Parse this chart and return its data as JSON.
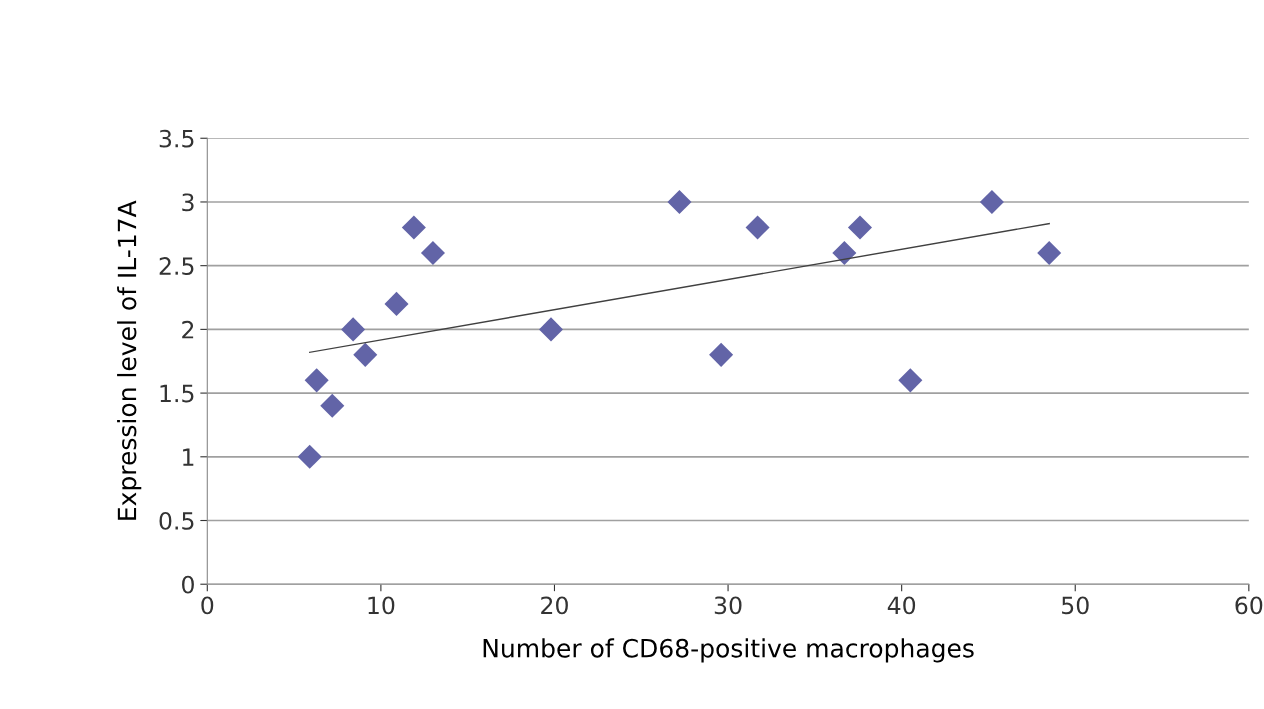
{
  "chart_data": {
    "type": "scatter",
    "xlabel": "Number of CD68-positive macrophages",
    "ylabel": "Expression level of IL-17A",
    "xlim": [
      0,
      60
    ],
    "xticks": [
      0,
      10,
      20,
      30,
      40,
      50,
      60
    ],
    "ylim": [
      0,
      3.5
    ],
    "yticks": [
      0,
      0.5,
      1,
      1.5,
      2,
      2.5,
      3,
      3.5
    ],
    "grid": "y",
    "series": [
      {
        "marker": "diamond",
        "color": "#6264a7",
        "x": [
          5.9,
          6.3,
          7.2,
          8.4,
          9.1,
          10.9,
          11.9,
          13.0,
          19.8,
          27.2,
          29.6,
          31.7,
          36.7,
          37.6,
          40.5,
          45.2,
          48.5
        ],
        "values": [
          1.0,
          1.6,
          1.4,
          2.0,
          1.8,
          2.2,
          2.8,
          2.6,
          2.0,
          3.0,
          1.8,
          2.8,
          2.6,
          2.8,
          1.6,
          3.0,
          2.6
        ]
      },
      {
        "type": "line",
        "color": "#404040",
        "x": [
          5.9,
          48.5
        ],
        "values": [
          1.82,
          2.83
        ]
      }
    ]
  }
}
